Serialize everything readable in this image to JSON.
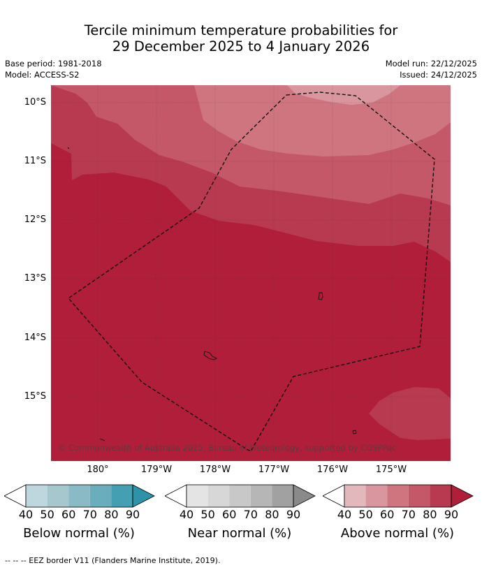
{
  "title_line1": "Tercile minimum temperature probabilities for",
  "title_line2": "29 December 2025 to 4 January 2026",
  "base_period": "Base period: 1981-2018",
  "model": "Model: ACCESS-S2",
  "model_run": "Model run: 22/12/2025",
  "issued": "Issued: 24/12/2025",
  "lat_labels": [
    "10°S",
    "11°S",
    "12°S",
    "13°S",
    "14°S",
    "15°S"
  ],
  "lon_labels": [
    "180°",
    "179°W",
    "178°W",
    "177°W",
    "176°W",
    "175°W"
  ],
  "copyright": "© Commonwealth of Australia 2025, Bureau of Meteorology, supported by COSPPac",
  "colorbars": [
    {
      "label": "Below normal (%)",
      "ticks": [
        "40",
        "50",
        "60",
        "70",
        "80",
        "90"
      ],
      "colors": [
        "#ffffff",
        "#bed6de",
        "#a7c7cf",
        "#8abac6",
        "#6aadbc",
        "#449fb2",
        "#2d93a8"
      ]
    },
    {
      "label": "Near normal (%)",
      "ticks": [
        "40",
        "50",
        "60",
        "70",
        "80",
        "90"
      ],
      "colors": [
        "#ffffff",
        "#e4e4e4",
        "#d7d7d7",
        "#c8c8c8",
        "#b6b6b6",
        "#a1a1a1",
        "#8a8a8a"
      ]
    },
    {
      "label": "Above normal (%)",
      "ticks": [
        "40",
        "50",
        "60",
        "70",
        "80",
        "90"
      ],
      "colors": [
        "#ffffff",
        "#e2b8bd",
        "#d9969e",
        "#cf7580",
        "#c45868",
        "#b83a51",
        "#b01e3a"
      ]
    }
  ],
  "footer": "--  --  -- EEZ border V11 (Flanders Marine Institute, 2019)."
}
